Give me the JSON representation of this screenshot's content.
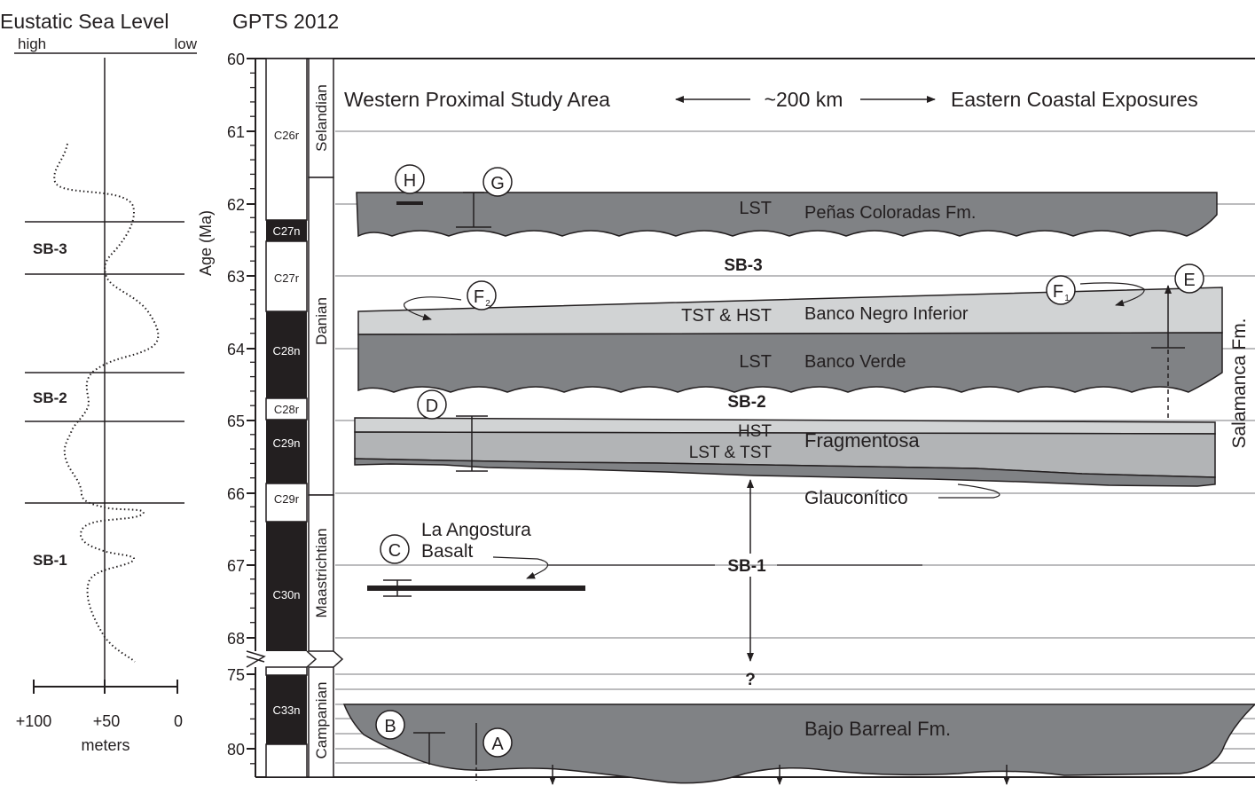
{
  "headers": {
    "sea_level_title": "Eustatic Sea Level",
    "sea_high": "high",
    "sea_low": "low",
    "gpts_title": "GPTS 2012",
    "age_axis_label": "Age (Ma)"
  },
  "age_ticks": [
    "60",
    "61",
    "62",
    "63",
    "64",
    "65",
    "66",
    "67",
    "68",
    "75",
    "80"
  ],
  "chrons": [
    "C26r",
    "C27n",
    "C27r",
    "C28n",
    "C28r",
    "C29n",
    "C29r",
    "C30n",
    "C33n"
  ],
  "stages": [
    "Selandian",
    "Danian",
    "Maastrichtian",
    "Campanian"
  ],
  "sea_level": {
    "boundaries": [
      "SB-3",
      "SB-2",
      "SB-1"
    ],
    "x_ticks": [
      "+100",
      "+50",
      "0"
    ],
    "x_label": "meters"
  },
  "banner": {
    "west": "Western Proximal Study Area",
    "distance": "~200 km",
    "east": "Eastern Coastal Exposures"
  },
  "units": {
    "penas": {
      "tract": "LST",
      "name": "Peñas Coloradas Fm."
    },
    "sb3": "SB-3",
    "banco_negro": {
      "tract": "TST & HST",
      "name": "Banco Negro Inferior"
    },
    "banco_verde": {
      "tract": "LST",
      "name": "Banco Verde"
    },
    "salamanca": "Salamanca Fm.",
    "sb2": "SB-2",
    "fragmentosa": {
      "tract_upper": "HST",
      "tract_lower": "LST & TST",
      "name": "Fragmentosa"
    },
    "glauconitico": "Glauconítico",
    "angostura": {
      "line1": "La Angostura",
      "line2": "Basalt"
    },
    "sb1": "SB-1",
    "question": "?",
    "bajo_barreal": "Bajo Barreal Fm."
  },
  "markers": {
    "a": "A",
    "b": "B",
    "c": "C",
    "d": "D",
    "e": "E",
    "f": "F",
    "f1_sub": "1",
    "f2_sub": "2",
    "g": "G",
    "h": "H"
  },
  "colors": {
    "dark_unit": "#808285",
    "light_unit": "#d1d3d4",
    "mid_unit": "#b2b4b6",
    "line": "#231f20",
    "grid": "#939598"
  }
}
